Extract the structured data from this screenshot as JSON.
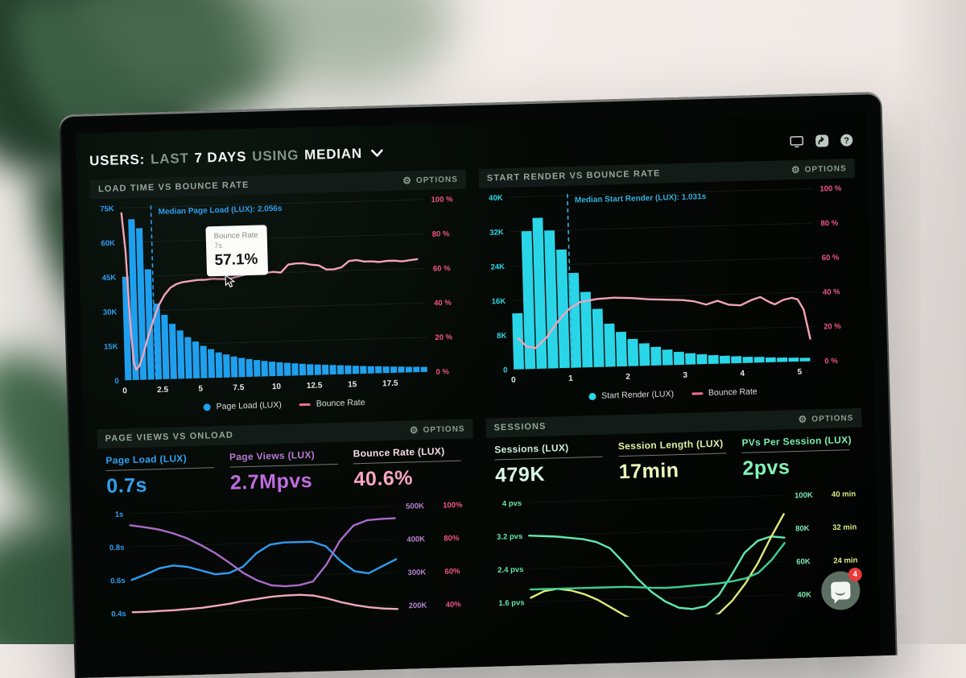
{
  "ui": {
    "options_label": "OPTIONS"
  },
  "header": {
    "segments": [
      {
        "text": "USERS:",
        "muted": false
      },
      {
        "text": "LAST",
        "muted": true
      },
      {
        "text": "7 DAYS",
        "muted": false
      },
      {
        "text": "USING",
        "muted": true
      },
      {
        "text": "MEDIAN",
        "muted": false
      }
    ]
  },
  "chat": {
    "unread_badge": "4"
  },
  "chart_data": [
    {
      "type": "bar",
      "kind": "histogram",
      "title": "LOAD TIME VS BOUNCE RATE",
      "x_axis": {
        "min": 0,
        "max": 20,
        "ticks": [
          0,
          2.5,
          5,
          7.5,
          10,
          12.5,
          15,
          17.5
        ],
        "unit": "s"
      },
      "y_left": {
        "label_color": "#2e9df2",
        "ticks": [
          "75K",
          "60K",
          "45K",
          "30K",
          "15K",
          "0"
        ],
        "max": 75000
      },
      "y_right": {
        "label_color": "#f0548a",
        "ticks": [
          "100 %",
          "80 %",
          "60 %",
          "40 %",
          "20 %",
          "0 %"
        ],
        "max": 100
      },
      "median": {
        "label": "Median Page Load (LUX): 2.056s",
        "x": 2.056,
        "color": "#2f9df0"
      },
      "bars": {
        "name": "Page Load (LUX)",
        "color": "#1fa0ef",
        "bin_width": 0.5,
        "values": [
          45000,
          70000,
          66000,
          48000,
          33000,
          28000,
          24000,
          21000,
          18000,
          16000,
          14000,
          12500,
          11000,
          10000,
          9000,
          8300,
          7700,
          7200,
          6700,
          6300,
          5900,
          5600,
          5300,
          5000,
          4700,
          4500,
          4300,
          4100,
          3900,
          3700,
          3500,
          3300,
          3100,
          3000,
          2800,
          2700,
          2600,
          2400,
          2300,
          2200
        ]
      },
      "line": {
        "name": "Bounce Rate",
        "color": "#f4a2b8",
        "points": [
          [
            0.1,
            97
          ],
          [
            0.3,
            75
          ],
          [
            0.5,
            30
          ],
          [
            0.65,
            10
          ],
          [
            0.8,
            6
          ],
          [
            1.0,
            8
          ],
          [
            1.3,
            15
          ],
          [
            1.6,
            24
          ],
          [
            2.0,
            34
          ],
          [
            2.4,
            43
          ],
          [
            2.8,
            49
          ],
          [
            3.2,
            53
          ],
          [
            3.6,
            55
          ],
          [
            4.0,
            56
          ],
          [
            4.5,
            56.5
          ],
          [
            5.0,
            57
          ],
          [
            5.5,
            57
          ],
          [
            6.0,
            57.5
          ],
          [
            6.5,
            57.2
          ],
          [
            7.0,
            57.1
          ],
          [
            7.5,
            58
          ],
          [
            8.0,
            59
          ],
          [
            8.5,
            60
          ],
          [
            9.0,
            60.5
          ],
          [
            9.5,
            60
          ],
          [
            10.0,
            60.5
          ],
          [
            10.5,
            60
          ],
          [
            11.0,
            64.5
          ],
          [
            11.5,
            65
          ],
          [
            12.0,
            65
          ],
          [
            12.5,
            64
          ],
          [
            13.0,
            63.5
          ],
          [
            13.5,
            61
          ],
          [
            14.0,
            61
          ],
          [
            14.5,
            62
          ],
          [
            15.0,
            65.5
          ],
          [
            15.5,
            66
          ],
          [
            16.0,
            65
          ],
          [
            16.5,
            65
          ],
          [
            17.0,
            64.5
          ],
          [
            17.5,
            65
          ],
          [
            18.0,
            65
          ],
          [
            18.5,
            64.5
          ],
          [
            19.0,
            65
          ],
          [
            19.5,
            65.5
          ]
        ]
      },
      "legend": [
        {
          "marker": "dot",
          "color": "#1fa0ef",
          "label": "Page Load (LUX)"
        },
        {
          "marker": "dash",
          "color": "#f0708f",
          "label": "Bounce Rate"
        }
      ],
      "tooltip": {
        "title": "Bounce Rate",
        "subtitle": "7s",
        "value": "57.1%"
      }
    },
    {
      "type": "bar",
      "kind": "histogram",
      "title": "START RENDER VS BOUNCE RATE",
      "x_axis": {
        "min": 0,
        "max": 5.3,
        "ticks": [
          0,
          1,
          2,
          3,
          4,
          5
        ],
        "unit": "s"
      },
      "y_left": {
        "label_color": "#2bd8e8",
        "ticks": [
          "40K",
          "32K",
          "24K",
          "16K",
          "8K",
          "0"
        ],
        "max": 40000
      },
      "y_right": {
        "label_color": "#f0548a",
        "ticks": [
          "100 %",
          "80 %",
          "60 %",
          "40 %",
          "20 %",
          "0 %"
        ],
        "max": 100
      },
      "median": {
        "label": "Median Start Render (LUX): 1.031s",
        "x": 1.031,
        "color": "#35b0dc"
      },
      "bars": {
        "name": "Start Render (LUX)",
        "color": "#29d6e8",
        "bin_width": 0.2,
        "values": [
          13000,
          32000,
          35000,
          32000,
          27500,
          22000,
          17500,
          13500,
          10000,
          8000,
          6300,
          5200,
          4300,
          3600,
          3000,
          2600,
          2300,
          2000,
          1800,
          1600,
          1400,
          1300,
          1100,
          1000,
          900,
          800
        ]
      },
      "line": {
        "name": "Bounce Rate",
        "color": "#f4a2b8",
        "points": [
          [
            0.1,
            18
          ],
          [
            0.25,
            13
          ],
          [
            0.4,
            12
          ],
          [
            0.6,
            18
          ],
          [
            0.8,
            27
          ],
          [
            1.0,
            34
          ],
          [
            1.2,
            38
          ],
          [
            1.5,
            39.5
          ],
          [
            1.8,
            40
          ],
          [
            2.1,
            39.5
          ],
          [
            2.4,
            38.5
          ],
          [
            2.7,
            38
          ],
          [
            3.0,
            37.5
          ],
          [
            3.2,
            36.5
          ],
          [
            3.4,
            34.5
          ],
          [
            3.6,
            36.5
          ],
          [
            3.8,
            34
          ],
          [
            4.0,
            33.5
          ],
          [
            4.2,
            36.5
          ],
          [
            4.35,
            38
          ],
          [
            4.5,
            35
          ],
          [
            4.6,
            33.5
          ],
          [
            4.75,
            36
          ],
          [
            4.9,
            37
          ],
          [
            5.0,
            36
          ],
          [
            5.1,
            30
          ],
          [
            5.2,
            13
          ]
        ]
      },
      "legend": [
        {
          "marker": "dot",
          "color": "#29d6e8",
          "label": "Start Render (LUX)"
        },
        {
          "marker": "dash",
          "color": "#f0708f",
          "label": "Bounce Rate"
        }
      ]
    },
    {
      "type": "line",
      "kind": "multiline",
      "title": "PAGE VIEWS VS ONLOAD",
      "metrics": [
        {
          "label": "Page Load (LUX)",
          "value": "0.7s",
          "label_color": "#31a0f2",
          "value_color": "#31a0f2"
        },
        {
          "label": "Page Views (LUX)",
          "value": "2.7Mpvs",
          "label_color": "#b678cf",
          "value_color": "#c06ce0"
        },
        {
          "label": "Bounce Rate (LUX)",
          "value": "40.6%",
          "label_color": "#f6dde8",
          "value_color": "#f7a6c4"
        }
      ],
      "margins": {
        "left": 38,
        "right": 100
      },
      "axis_left": {
        "color": "#2e9df2",
        "labels": [
          "1s",
          "0.8s",
          "0.6s",
          "0.4s"
        ]
      },
      "axes_right": [
        {
          "color": "#b583cf",
          "labels": [
            "500K",
            "400K",
            "300K",
            "200K"
          ]
        },
        {
          "color": "#f0548a",
          "labels": [
            "100%",
            "80%",
            "60%",
            "40%"
          ]
        }
      ],
      "series": [
        {
          "name": "Page Load (LUX)",
          "color": "#2e9df2",
          "scale": {
            "top_tick": 1.0,
            "tick_step": 0.2
          },
          "values": [
            0.6,
            0.63,
            0.665,
            0.68,
            0.67,
            0.645,
            0.62,
            0.625,
            0.66,
            0.74,
            0.79,
            0.8,
            0.8,
            0.8,
            0.77,
            0.68,
            0.615,
            0.6,
            0.64,
            0.68
          ]
        },
        {
          "name": "Page Views (LUX)",
          "color": "#a86bc8",
          "scale": {
            "top_tick": 500000,
            "tick_step": 100000
          },
          "values": [
            465000,
            458000,
            450000,
            438000,
            422000,
            400000,
            375000,
            345000,
            312000,
            288000,
            272000,
            268000,
            270000,
            280000,
            330000,
            400000,
            445000,
            460000,
            463000,
            464000
          ]
        },
        {
          "name": "Bounce Rate (LUX)",
          "color": "#f0a8bc",
          "scale": {
            "top_tick": 100,
            "tick_step": 20
          },
          "values": [
            40.5,
            40.5,
            40.8,
            41,
            41.5,
            42,
            43,
            44,
            45.5,
            46.5,
            47.5,
            48,
            48.2,
            47.5,
            45.5,
            43,
            41,
            39.5,
            38.5,
            38
          ]
        }
      ]
    },
    {
      "type": "line",
      "kind": "multiline",
      "title": "SESSIONS",
      "metrics": [
        {
          "label": "Sessions (LUX)",
          "value": "479K",
          "label_color": "#cdeedd",
          "value_color": "#dcf8ea"
        },
        {
          "label": "Session Length (LUX)",
          "value": "17min",
          "label_color": "#dff0a2",
          "value_color": "#eef8bc"
        },
        {
          "label": "PVs Per Session (LUX)",
          "value": "2pvs",
          "label_color": "#7bedb0",
          "value_color": "#84f4b8"
        }
      ],
      "margins": {
        "left": 50,
        "right": 100
      },
      "axis_left": {
        "color": "#66e6a4",
        "labels": [
          "4 pvs",
          "3.2 pvs",
          "2.4 pvs",
          "1.6 pvs"
        ]
      },
      "axes_right": [
        {
          "color": "#7de8b4",
          "labels": [
            "100K",
            "80K",
            "60K",
            "40K"
          ]
        },
        {
          "color": "#d8ea82",
          "labels": [
            "40 min",
            "32 min",
            "24 min",
            ""
          ]
        }
      ],
      "series": [
        {
          "name": "Sessions (LUX)",
          "color": "#5fe8b0",
          "scale": {
            "top_tick": 100000,
            "tick_step": 20000
          },
          "values": [
            80000,
            79500,
            79000,
            78000,
            77000,
            75000,
            71000,
            62000,
            52000,
            44000,
            38000,
            34000,
            33000,
            34500,
            41000,
            53000,
            66000,
            73000,
            75500,
            74500
          ]
        },
        {
          "name": "Session Length (LUX)",
          "color": "#dfe97a",
          "scale": {
            "top_tick": 40,
            "tick_step": 8
          },
          "values": [
            17,
            18.5,
            19,
            18.5,
            17.5,
            16,
            14,
            12,
            10.5,
            9.5,
            9,
            9,
            9.5,
            10.5,
            12,
            15,
            19,
            24,
            30,
            35.5
          ]
        },
        {
          "name": "PVs Per Session (LUX)",
          "color": "#3ecf96",
          "scale": {
            "top_tick": 4,
            "tick_step": 0.8
          },
          "values": [
            1.9,
            1.9,
            1.9,
            1.9,
            1.9,
            1.9,
            1.9,
            1.9,
            1.88,
            1.86,
            1.85,
            1.86,
            1.88,
            1.9,
            1.92,
            1.96,
            2.02,
            2.15,
            2.45,
            2.85
          ]
        }
      ]
    }
  ]
}
